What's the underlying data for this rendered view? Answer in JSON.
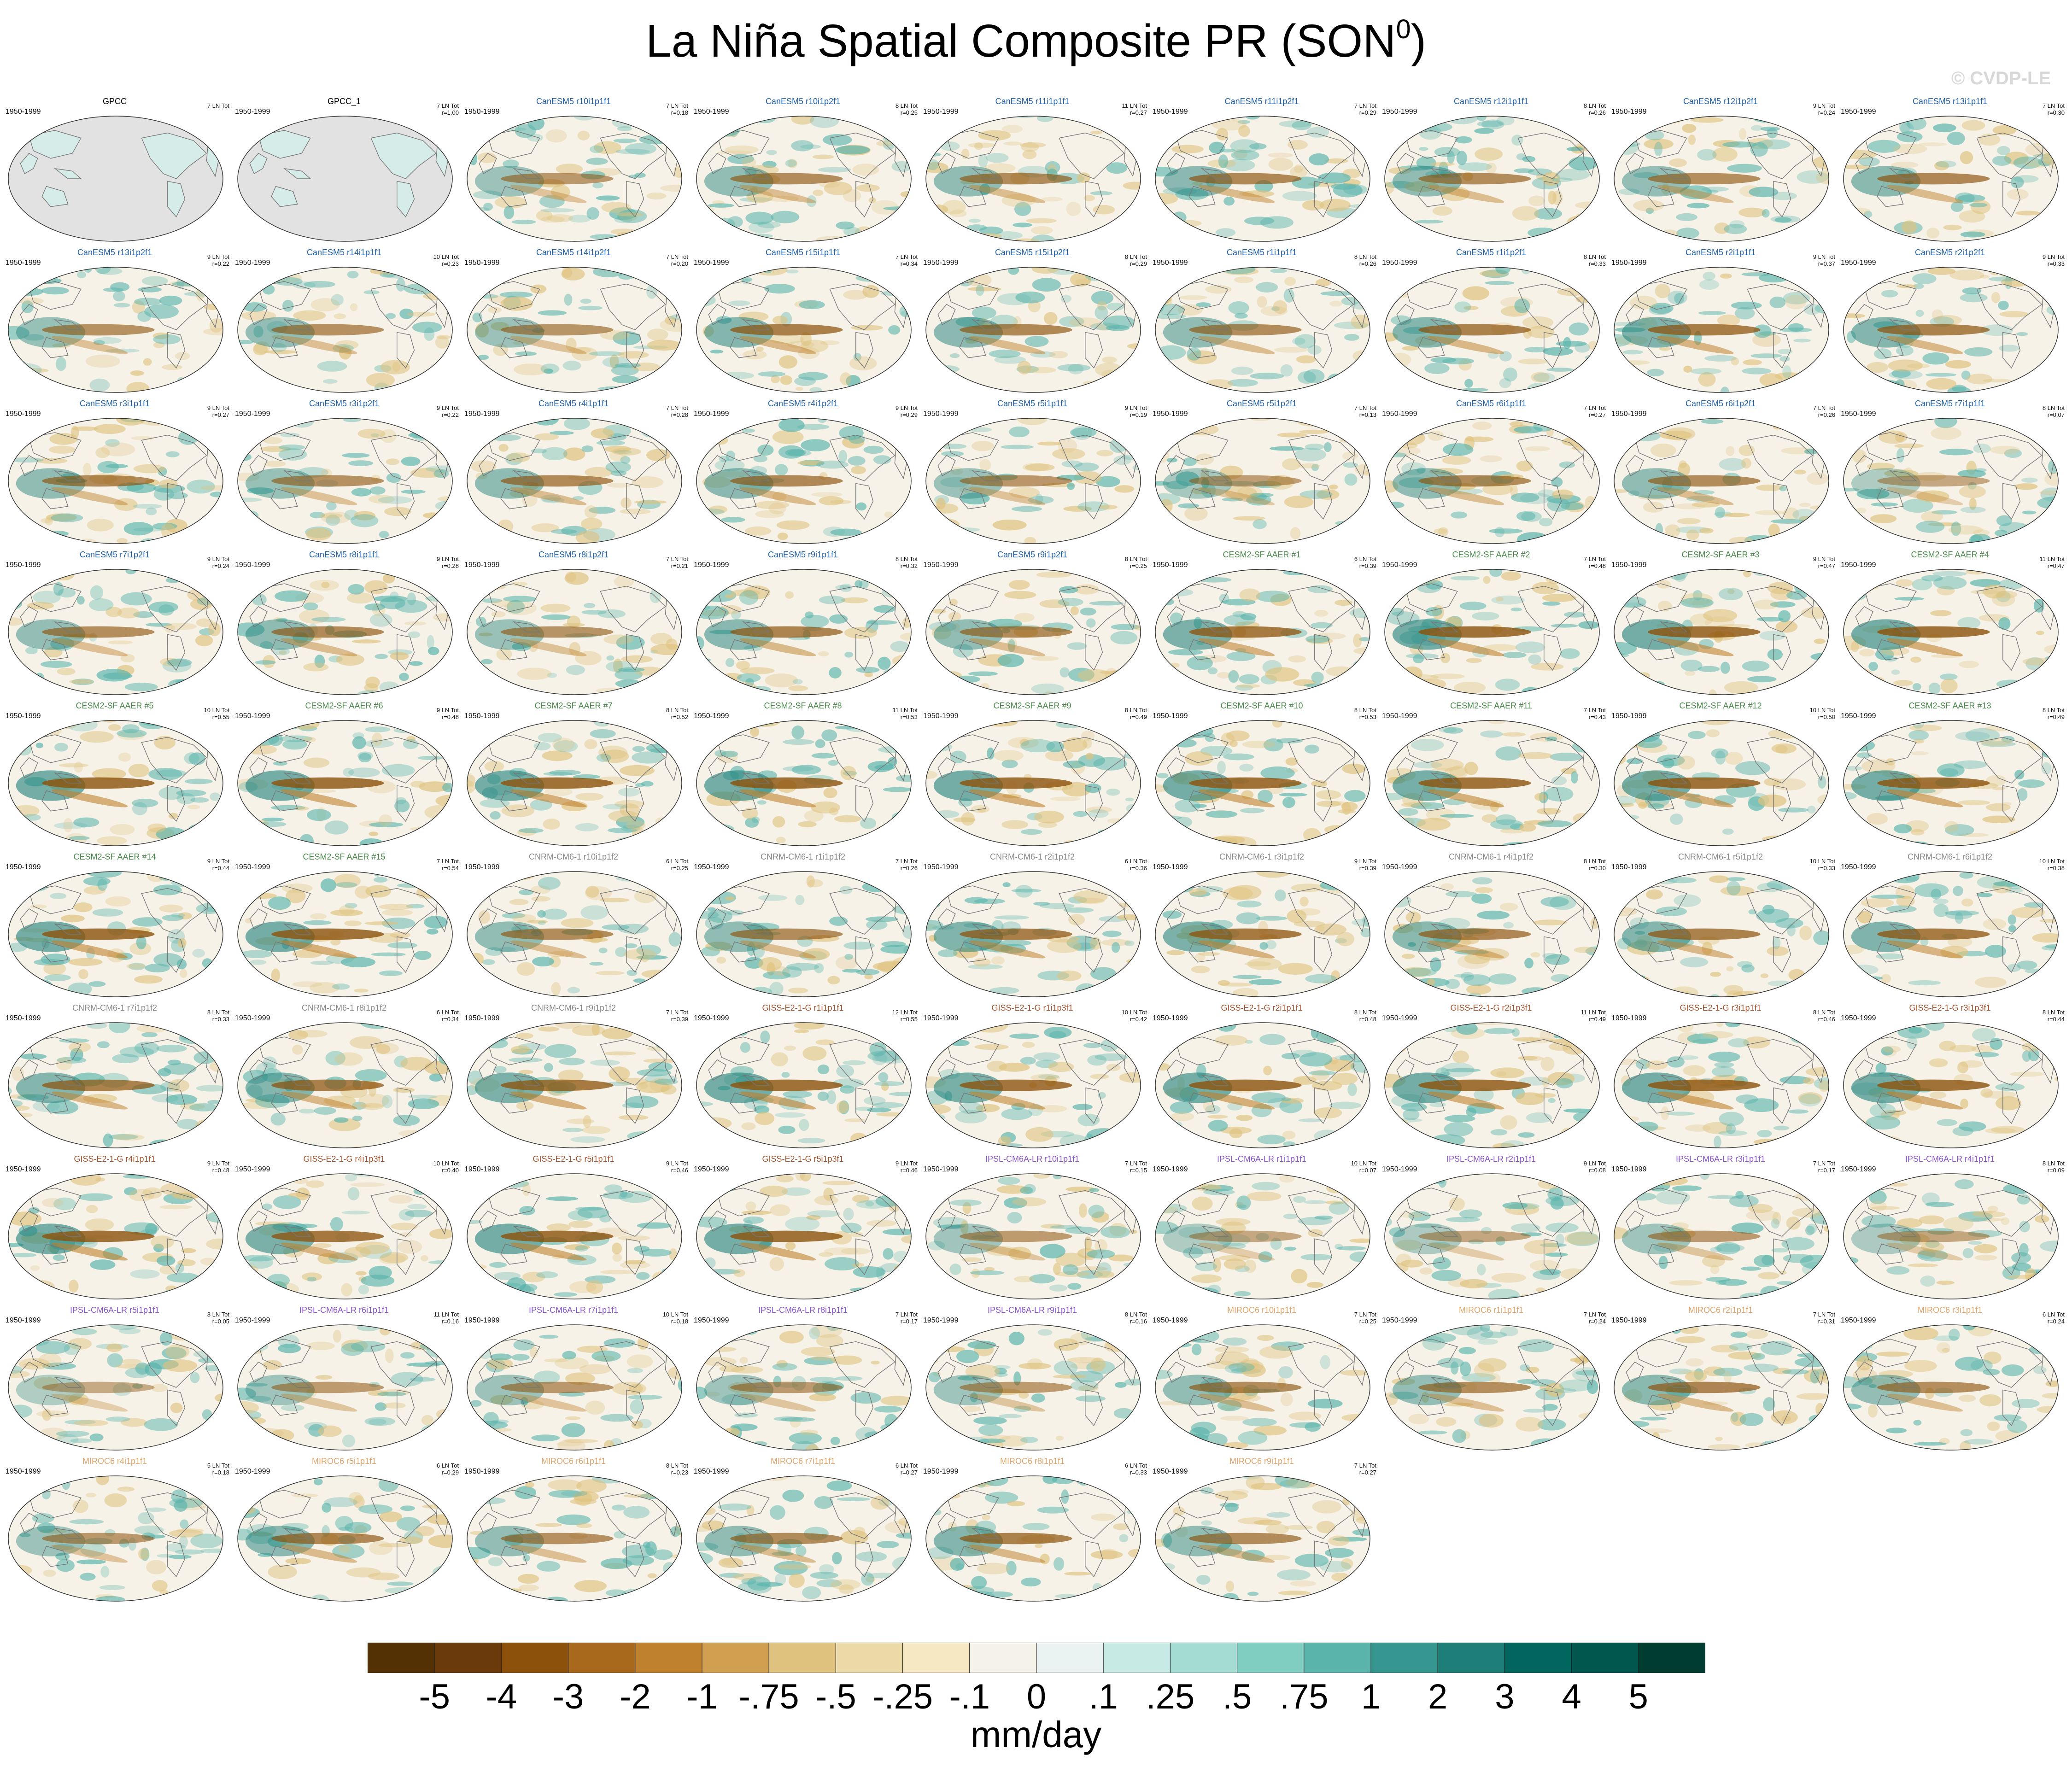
{
  "title": {
    "main": "La Niña Spatial Composite PR (SON",
    "sup": "0",
    "close": ")"
  },
  "watermark": "© CVDP-LE",
  "colors": {
    "GPCC": "#000000",
    "CanESM5": "#1f5fa6",
    "CESM2-SF AAER": "#4a8a4a",
    "CNRM-CM6-1": "#888888",
    "GISS-E2-1-G": "#a0522d",
    "IPSL-CM6A-LR": "#8a55c8",
    "MIROC6": "#e0a56a"
  },
  "chart_data": {
    "type": "heatmap",
    "title": "La Niña Spatial Composite PR (SON0)",
    "units": "mm/day",
    "colorbar": {
      "labels": [
        "-5",
        "-4",
        "-3",
        "-2",
        "-1",
        "-.75",
        "-.5",
        "-.25",
        "-.1",
        "0",
        ".1",
        ".25",
        ".5",
        ".75",
        "1",
        "2",
        "3",
        "4",
        "5"
      ],
      "colors": [
        "#543005",
        "#6b3a0a",
        "#8c510a",
        "#a8691d",
        "#bf812d",
        "#d0a050",
        "#dfc27d",
        "#ecd9a8",
        "#f6e8c3",
        "#f5f2ea",
        "#eaf3f1",
        "#c7eae5",
        "#a4dcd3",
        "#80cdc1",
        "#5ab4ac",
        "#35978f",
        "#1d7f78",
        "#01665e",
        "#01564d",
        "#003c30"
      ]
    },
    "panels": [
      {
        "title": "GPCC",
        "model": "GPCC",
        "years": "1950-1999",
        "count": "7 LN Tot",
        "r": ""
      },
      {
        "title": "GPCC_1",
        "model": "GPCC",
        "years": "1950-1999",
        "count": "7 LN Tot",
        "r": "r=1.00"
      },
      {
        "title": "CanESM5 r10i1p1f1",
        "model": "CanESM5",
        "years": "1950-1999",
        "count": "7 LN Tot",
        "r": "r=0.18"
      },
      {
        "title": "CanESM5 r10i1p2f1",
        "model": "CanESM5",
        "years": "1950-1999",
        "count": "8 LN Tot",
        "r": "r=0.25"
      },
      {
        "title": "CanESM5 r11i1p1f1",
        "model": "CanESM5",
        "years": "1950-1999",
        "count": "11 LN Tot",
        "r": "r=0.27"
      },
      {
        "title": "CanESM5 r11i1p2f1",
        "model": "CanESM5",
        "years": "1950-1999",
        "count": "7 LN Tot",
        "r": "r=0.29"
      },
      {
        "title": "CanESM5 r12i1p1f1",
        "model": "CanESM5",
        "years": "1950-1999",
        "count": "8 LN Tot",
        "r": "r=0.26"
      },
      {
        "title": "CanESM5 r12i1p2f1",
        "model": "CanESM5",
        "years": "1950-1999",
        "count": "9 LN Tot",
        "r": "r=0.24"
      },
      {
        "title": "CanESM5 r13i1p1f1",
        "model": "CanESM5",
        "years": "1950-1999",
        "count": "7 LN Tot",
        "r": "r=0.30"
      },
      {
        "title": "CanESM5 r13i1p2f1",
        "model": "CanESM5",
        "years": "1950-1999",
        "count": "9 LN Tot",
        "r": "r=0.22"
      },
      {
        "title": "CanESM5 r14i1p1f1",
        "model": "CanESM5",
        "years": "1950-1999",
        "count": "10 LN Tot",
        "r": "r=0.23"
      },
      {
        "title": "CanESM5 r14i1p2f1",
        "model": "CanESM5",
        "years": "1950-1999",
        "count": "7 LN Tot",
        "r": "r=0.20"
      },
      {
        "title": "CanESM5 r15i1p1f1",
        "model": "CanESM5",
        "years": "1950-1999",
        "count": "7 LN Tot",
        "r": "r=0.34"
      },
      {
        "title": "CanESM5 r15i1p2f1",
        "model": "CanESM5",
        "years": "1950-1999",
        "count": "8 LN Tot",
        "r": "r=0.29"
      },
      {
        "title": "CanESM5 r1i1p1f1",
        "model": "CanESM5",
        "years": "1950-1999",
        "count": "8 LN Tot",
        "r": "r=0.26"
      },
      {
        "title": "CanESM5 r1i1p2f1",
        "model": "CanESM5",
        "years": "1950-1999",
        "count": "8 LN Tot",
        "r": "r=0.33"
      },
      {
        "title": "CanESM5 r2i1p1f1",
        "model": "CanESM5",
        "years": "1950-1999",
        "count": "9 LN Tot",
        "r": "r=0.37"
      },
      {
        "title": "CanESM5 r2i1p2f1",
        "model": "CanESM5",
        "years": "1950-1999",
        "count": "9 LN Tot",
        "r": "r=0.33"
      },
      {
        "title": "CanESM5 r3i1p1f1",
        "model": "CanESM5",
        "years": "1950-1999",
        "count": "9 LN Tot",
        "r": "r=0.27"
      },
      {
        "title": "CanESM5 r3i1p2f1",
        "model": "CanESM5",
        "years": "1950-1999",
        "count": "9 LN Tot",
        "r": "r=0.22"
      },
      {
        "title": "CanESM5 r4i1p1f1",
        "model": "CanESM5",
        "years": "1950-1999",
        "count": "7 LN Tot",
        "r": "r=0.28"
      },
      {
        "title": "CanESM5 r4i1p2f1",
        "model": "CanESM5",
        "years": "1950-1999",
        "count": "9 LN Tot",
        "r": "r=0.29"
      },
      {
        "title": "CanESM5 r5i1p1f1",
        "model": "CanESM5",
        "years": "1950-1999",
        "count": "9 LN Tot",
        "r": "r=0.19"
      },
      {
        "title": "CanESM5 r5i1p2f1",
        "model": "CanESM5",
        "years": "1950-1999",
        "count": "7 LN Tot",
        "r": "r=0.13"
      },
      {
        "title": "CanESM5 r6i1p1f1",
        "model": "CanESM5",
        "years": "1950-1999",
        "count": "7 LN Tot",
        "r": "r=0.27"
      },
      {
        "title": "CanESM5 r6i1p2f1",
        "model": "CanESM5",
        "years": "1950-1999",
        "count": "7 LN Tot",
        "r": "r=0.26"
      },
      {
        "title": "CanESM5 r7i1p1f1",
        "model": "CanESM5",
        "years": "1950-1999",
        "count": "8 LN Tot",
        "r": "r=0.07"
      },
      {
        "title": "CanESM5 r7i1p2f1",
        "model": "CanESM5",
        "years": "1950-1999",
        "count": "9 LN Tot",
        "r": "r=0.24"
      },
      {
        "title": "CanESM5 r8i1p1f1",
        "model": "CanESM5",
        "years": "1950-1999",
        "count": "9 LN Tot",
        "r": "r=0.28"
      },
      {
        "title": "CanESM5 r8i1p2f1",
        "model": "CanESM5",
        "years": "1950-1999",
        "count": "7 LN Tot",
        "r": "r=0.21"
      },
      {
        "title": "CanESM5 r9i1p1f1",
        "model": "CanESM5",
        "years": "1950-1999",
        "count": "8 LN Tot",
        "r": "r=0.32"
      },
      {
        "title": "CanESM5 r9i1p2f1",
        "model": "CanESM5",
        "years": "1950-1999",
        "count": "8 LN Tot",
        "r": "r=0.25"
      },
      {
        "title": "CESM2-SF AAER #1",
        "model": "CESM2-SF AAER",
        "years": "1950-1999",
        "count": "6 LN Tot",
        "r": "r=0.39"
      },
      {
        "title": "CESM2-SF AAER #2",
        "model": "CESM2-SF AAER",
        "years": "1950-1999",
        "count": "7 LN Tot",
        "r": "r=0.48"
      },
      {
        "title": "CESM2-SF AAER #3",
        "model": "CESM2-SF AAER",
        "years": "1950-1999",
        "count": "9 LN Tot",
        "r": "r=0.47"
      },
      {
        "title": "CESM2-SF AAER #4",
        "model": "CESM2-SF AAER",
        "years": "1950-1999",
        "count": "11 LN Tot",
        "r": "r=0.47"
      },
      {
        "title": "CESM2-SF AAER #5",
        "model": "CESM2-SF AAER",
        "years": "1950-1999",
        "count": "10 LN Tot",
        "r": "r=0.55"
      },
      {
        "title": "CESM2-SF AAER #6",
        "model": "CESM2-SF AAER",
        "years": "1950-1999",
        "count": "9 LN Tot",
        "r": "r=0.48"
      },
      {
        "title": "CESM2-SF AAER #7",
        "model": "CESM2-SF AAER",
        "years": "1950-1999",
        "count": "8 LN Tot",
        "r": "r=0.52"
      },
      {
        "title": "CESM2-SF AAER #8",
        "model": "CESM2-SF AAER",
        "years": "1950-1999",
        "count": "11 LN Tot",
        "r": "r=0.53"
      },
      {
        "title": "CESM2-SF AAER #9",
        "model": "CESM2-SF AAER",
        "years": "1950-1999",
        "count": "8 LN Tot",
        "r": "r=0.49"
      },
      {
        "title": "CESM2-SF AAER #10",
        "model": "CESM2-SF AAER",
        "years": "1950-1999",
        "count": "8 LN Tot",
        "r": "r=0.53"
      },
      {
        "title": "CESM2-SF AAER #11",
        "model": "CESM2-SF AAER",
        "years": "1950-1999",
        "count": "7 LN Tot",
        "r": "r=0.43"
      },
      {
        "title": "CESM2-SF AAER #12",
        "model": "CESM2-SF AAER",
        "years": "1950-1999",
        "count": "10 LN Tot",
        "r": "r=0.50"
      },
      {
        "title": "CESM2-SF AAER #13",
        "model": "CESM2-SF AAER",
        "years": "1950-1999",
        "count": "8 LN Tot",
        "r": "r=0.49"
      },
      {
        "title": "CESM2-SF AAER #14",
        "model": "CESM2-SF AAER",
        "years": "1950-1999",
        "count": "9 LN Tot",
        "r": "r=0.44"
      },
      {
        "title": "CESM2-SF AAER #15",
        "model": "CESM2-SF AAER",
        "years": "1950-1999",
        "count": "7 LN Tot",
        "r": "r=0.54"
      },
      {
        "title": "CNRM-CM6-1 r10i1p1f2",
        "model": "CNRM-CM6-1",
        "years": "1950-1999",
        "count": "6 LN Tot",
        "r": "r=0.25"
      },
      {
        "title": "CNRM-CM6-1 r1i1p1f2",
        "model": "CNRM-CM6-1",
        "years": "1950-1999",
        "count": "7 LN Tot",
        "r": "r=0.26"
      },
      {
        "title": "CNRM-CM6-1 r2i1p1f2",
        "model": "CNRM-CM6-1",
        "years": "1950-1999",
        "count": "6 LN Tot",
        "r": "r=0.36"
      },
      {
        "title": "CNRM-CM6-1 r3i1p1f2",
        "model": "CNRM-CM6-1",
        "years": "1950-1999",
        "count": "9 LN Tot",
        "r": "r=0.39"
      },
      {
        "title": "CNRM-CM6-1 r4i1p1f2",
        "model": "CNRM-CM6-1",
        "years": "1950-1999",
        "count": "8 LN Tot",
        "r": "r=0.30"
      },
      {
        "title": "CNRM-CM6-1 r5i1p1f2",
        "model": "CNRM-CM6-1",
        "years": "1950-1999",
        "count": "10 LN Tot",
        "r": "r=0.33"
      },
      {
        "title": "CNRM-CM6-1 r6i1p1f2",
        "model": "CNRM-CM6-1",
        "years": "1950-1999",
        "count": "10 LN Tot",
        "r": "r=0.38"
      },
      {
        "title": "CNRM-CM6-1 r7i1p1f2",
        "model": "CNRM-CM6-1",
        "years": "1950-1999",
        "count": "8 LN Tot",
        "r": "r=0.33"
      },
      {
        "title": "CNRM-CM6-1 r8i1p1f2",
        "model": "CNRM-CM6-1",
        "years": "1950-1999",
        "count": "6 LN Tot",
        "r": "r=0.34"
      },
      {
        "title": "CNRM-CM6-1 r9i1p1f2",
        "model": "CNRM-CM6-1",
        "years": "1950-1999",
        "count": "7 LN Tot",
        "r": "r=0.39"
      },
      {
        "title": "GISS-E2-1-G r1i1p1f1",
        "model": "GISS-E2-1-G",
        "years": "1950-1999",
        "count": "12 LN Tot",
        "r": "r=0.55"
      },
      {
        "title": "GISS-E2-1-G r1i1p3f1",
        "model": "GISS-E2-1-G",
        "years": "1950-1999",
        "count": "10 LN Tot",
        "r": "r=0.42"
      },
      {
        "title": "GISS-E2-1-G r2i1p1f1",
        "model": "GISS-E2-1-G",
        "years": "1950-1999",
        "count": "8 LN Tot",
        "r": "r=0.48"
      },
      {
        "title": "GISS-E2-1-G r2i1p3f1",
        "model": "GISS-E2-1-G",
        "years": "1950-1999",
        "count": "11 LN Tot",
        "r": "r=0.49"
      },
      {
        "title": "GISS-E2-1-G r3i1p1f1",
        "model": "GISS-E2-1-G",
        "years": "1950-1999",
        "count": "8 LN Tot",
        "r": "r=0.46"
      },
      {
        "title": "GISS-E2-1-G r3i1p3f1",
        "model": "GISS-E2-1-G",
        "years": "1950-1999",
        "count": "8 LN Tot",
        "r": "r=0.44"
      },
      {
        "title": "GISS-E2-1-G r4i1p1f1",
        "model": "GISS-E2-1-G",
        "years": "1950-1999",
        "count": "9 LN Tot",
        "r": "r=0.48"
      },
      {
        "title": "GISS-E2-1-G r4i1p3f1",
        "model": "GISS-E2-1-G",
        "years": "1950-1999",
        "count": "10 LN Tot",
        "r": "r=0.40"
      },
      {
        "title": "GISS-E2-1-G r5i1p1f1",
        "model": "GISS-E2-1-G",
        "years": "1950-1999",
        "count": "9 LN Tot",
        "r": "r=0.46"
      },
      {
        "title": "GISS-E2-1-G r5i1p3f1",
        "model": "GISS-E2-1-G",
        "years": "1950-1999",
        "count": "9 LN Tot",
        "r": "r=0.46"
      },
      {
        "title": "IPSL-CM6A-LR r10i1p1f1",
        "model": "IPSL-CM6A-LR",
        "years": "1950-1999",
        "count": "7 LN Tot",
        "r": "r=0.15"
      },
      {
        "title": "IPSL-CM6A-LR r1i1p1f1",
        "model": "IPSL-CM6A-LR",
        "years": "1950-1999",
        "count": "10 LN Tot",
        "r": "r=0.07"
      },
      {
        "title": "IPSL-CM6A-LR r2i1p1f1",
        "model": "IPSL-CM6A-LR",
        "years": "1950-1999",
        "count": "9 LN Tot",
        "r": "r=0.08"
      },
      {
        "title": "IPSL-CM6A-LR r3i1p1f1",
        "model": "IPSL-CM6A-LR",
        "years": "1950-1999",
        "count": "7 LN Tot",
        "r": "r=0.17"
      },
      {
        "title": "IPSL-CM6A-LR r4i1p1f1",
        "model": "IPSL-CM6A-LR",
        "years": "1950-1999",
        "count": "8 LN Tot",
        "r": "r=0.09"
      },
      {
        "title": "IPSL-CM6A-LR r5i1p1f1",
        "model": "IPSL-CM6A-LR",
        "years": "1950-1999",
        "count": "8 LN Tot",
        "r": "r=0.05"
      },
      {
        "title": "IPSL-CM6A-LR r6i1p1f1",
        "model": "IPSL-CM6A-LR",
        "years": "1950-1999",
        "count": "11 LN Tot",
        "r": "r=0.16"
      },
      {
        "title": "IPSL-CM6A-LR r7i1p1f1",
        "model": "IPSL-CM6A-LR",
        "years": "1950-1999",
        "count": "10 LN Tot",
        "r": "r=0.18"
      },
      {
        "title": "IPSL-CM6A-LR r8i1p1f1",
        "model": "IPSL-CM6A-LR",
        "years": "1950-1999",
        "count": "7 LN Tot",
        "r": "r=0.17"
      },
      {
        "title": "IPSL-CM6A-LR r9i1p1f1",
        "model": "IPSL-CM6A-LR",
        "years": "1950-1999",
        "count": "8 LN Tot",
        "r": "r=0.16"
      },
      {
        "title": "MIROC6 r10i1p1f1",
        "model": "MIROC6",
        "years": "1950-1999",
        "count": "7 LN Tot",
        "r": "r=0.25"
      },
      {
        "title": "MIROC6 r1i1p1f1",
        "model": "MIROC6",
        "years": "1950-1999",
        "count": "7 LN Tot",
        "r": "r=0.24"
      },
      {
        "title": "MIROC6 r2i1p1f1",
        "model": "MIROC6",
        "years": "1950-1999",
        "count": "7 LN Tot",
        "r": "r=0.31"
      },
      {
        "title": "MIROC6 r3i1p1f1",
        "model": "MIROC6",
        "years": "1950-1999",
        "count": "6 LN Tot",
        "r": "r=0.24"
      },
      {
        "title": "MIROC6 r4i1p1f1",
        "model": "MIROC6",
        "years": "1950-1999",
        "count": "5 LN Tot",
        "r": "r=0.18"
      },
      {
        "title": "MIROC6 r5i1p1f1",
        "model": "MIROC6",
        "years": "1950-1999",
        "count": "6 LN Tot",
        "r": "r=0.29"
      },
      {
        "title": "MIROC6 r6i1p1f1",
        "model": "MIROC6",
        "years": "1950-1999",
        "count": "8 LN Tot",
        "r": "r=0.23"
      },
      {
        "title": "MIROC6 r7i1p1f1",
        "model": "MIROC6",
        "years": "1950-1999",
        "count": "6 LN Tot",
        "r": "r=0.27"
      },
      {
        "title": "MIROC6 r8i1p1f1",
        "model": "MIROC6",
        "years": "1950-1999",
        "count": "6 LN Tot",
        "r": "r=0.33"
      },
      {
        "title": "MIROC6 r9i1p1f1",
        "model": "MIROC6",
        "years": "1950-1999",
        "count": "7 LN Tot",
        "r": "r=0.27"
      }
    ]
  }
}
